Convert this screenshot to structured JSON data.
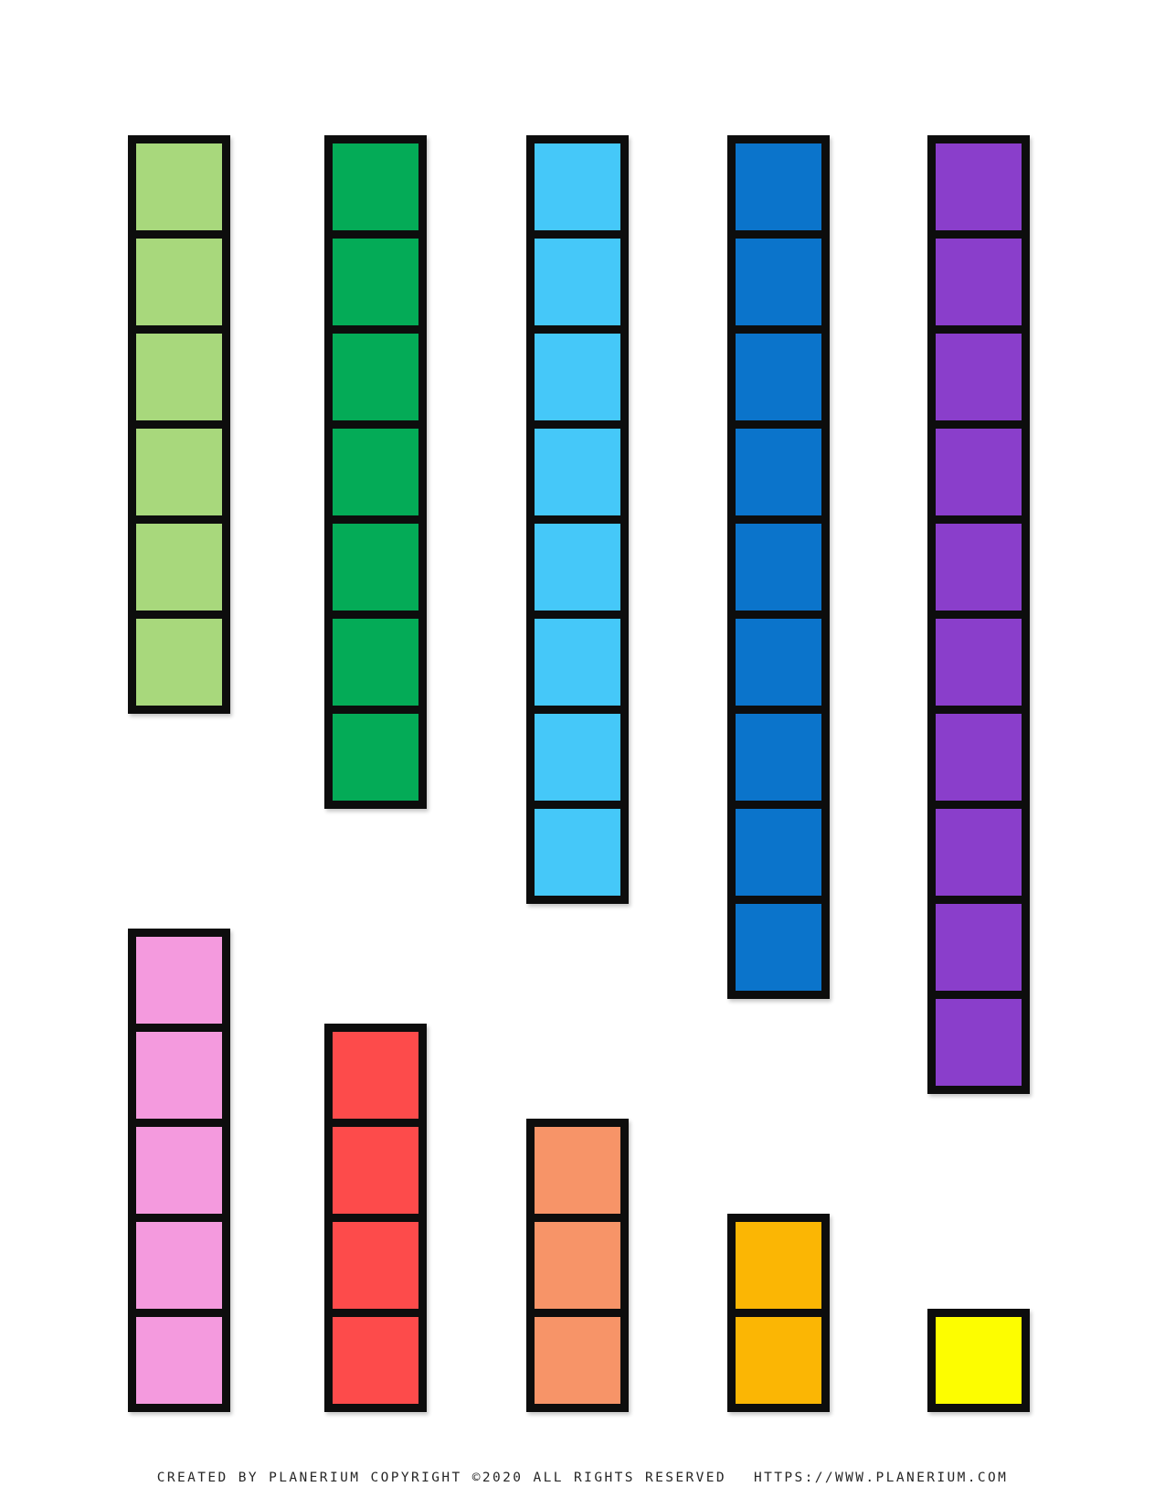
{
  "page": {
    "background": "#ffffff",
    "cell_border_color": "#0d0d0d"
  },
  "towers": [
    {
      "id": "light-green",
      "color_name": "light green",
      "color": "#a8d87c",
      "cells": 6,
      "row": "top",
      "col": 0
    },
    {
      "id": "green",
      "color_name": "green",
      "color": "#04ab57",
      "cells": 7,
      "row": "top",
      "col": 1
    },
    {
      "id": "light-blue",
      "color_name": "light blue",
      "color": "#45c8f9",
      "cells": 8,
      "row": "top",
      "col": 2
    },
    {
      "id": "blue",
      "color_name": "blue",
      "color": "#0b74cb",
      "cells": 9,
      "row": "top",
      "col": 3
    },
    {
      "id": "purple",
      "color_name": "purple",
      "color": "#8a3ecb",
      "cells": 10,
      "row": "top",
      "col": 4
    },
    {
      "id": "pink",
      "color_name": "pink",
      "color": "#f49ade",
      "cells": 5,
      "row": "bottom",
      "col": 0
    },
    {
      "id": "red",
      "color_name": "red",
      "color": "#fd4b4b",
      "cells": 4,
      "row": "bottom",
      "col": 1
    },
    {
      "id": "salmon",
      "color_name": "salmon",
      "color": "#f79468",
      "cells": 3,
      "row": "bottom",
      "col": 2
    },
    {
      "id": "amber",
      "color_name": "amber",
      "color": "#fbb604",
      "cells": 2,
      "row": "bottom",
      "col": 3
    },
    {
      "id": "yellow",
      "color_name": "yellow",
      "color": "#fdfd00",
      "cells": 1,
      "row": "bottom",
      "col": 4
    }
  ],
  "footer": {
    "credit": "CREATED BY PLANERIUM COPYRIGHT ©2020 ALL RIGHTS RESERVED",
    "url": "HTTPS://WWW.PLANERIUM.COM"
  }
}
